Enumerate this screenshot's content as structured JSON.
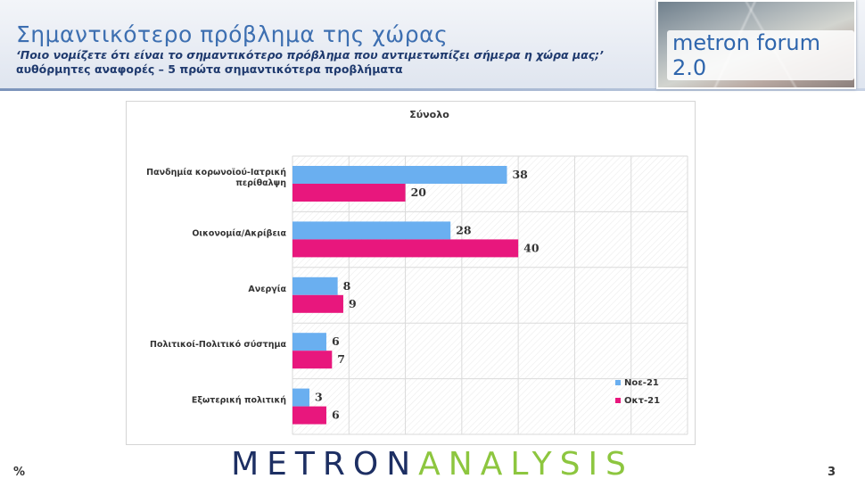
{
  "header": {
    "title": "Σημαντικότερο πρόβλημα της χώρας",
    "subtitle": "‘Ποιο νομίζετε ότι  είναι το σημαντικότερο πρόβλημα που αντιμετωπίζει σήμερα η χώρα μας;’",
    "subtitle2": "αυθόρμητες αναφορές – 5 πρώτα σημαντικότερα προβλήματα",
    "logo_text": "metron forum 2.0"
  },
  "chart_data": {
    "type": "bar",
    "orientation": "horizontal",
    "title": "Σύνολο",
    "categories": [
      [
        "Πανδημία κορωνοϊού-Ιατρική",
        "περίθαλψη"
      ],
      [
        "Οικονομία/Ακρίβεια"
      ],
      [
        "Ανεργία"
      ],
      [
        "Πολιτικοί-Πολιτικό σύστημα"
      ],
      [
        "Εξωτερική πολιτική"
      ]
    ],
    "series": [
      {
        "name": "Νοε-21",
        "color": "#6aaff0",
        "values": [
          38,
          28,
          8,
          6,
          3
        ]
      },
      {
        "name": "Οκτ-21",
        "color": "#e8177d",
        "values": [
          20,
          40,
          9,
          7,
          6
        ]
      }
    ],
    "xlim": [
      0,
      70
    ],
    "grid": true,
    "legend_position": "bottom-right"
  },
  "footer": {
    "logo_part1": "METRON",
    "logo_part2": "ANALYSIS",
    "unit": "%",
    "page_number": "3"
  }
}
